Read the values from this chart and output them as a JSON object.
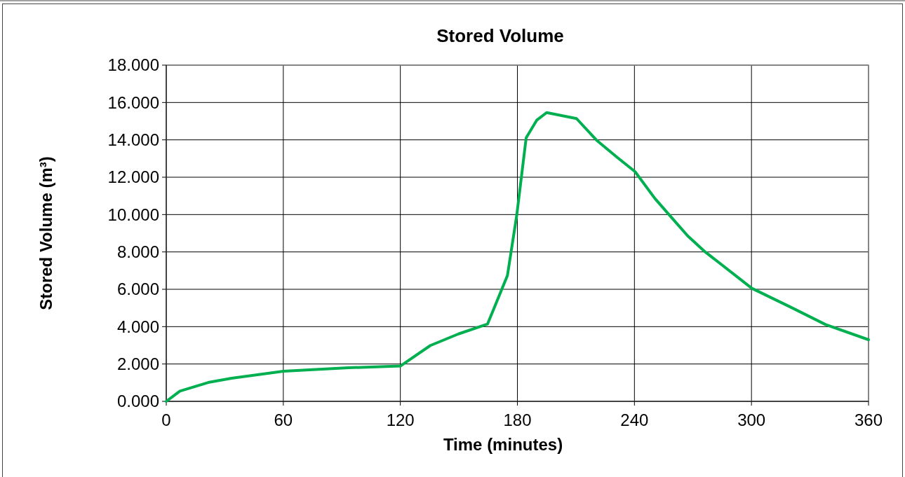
{
  "chart_data": {
    "type": "line",
    "title": "Stored Volume",
    "xlabel": "Time (minutes)",
    "ylabel": "Stored Volume (m³)",
    "x": [
      0,
      7,
      21.5,
      33.5,
      60,
      93.4,
      120,
      135.4,
      149.8,
      164.7,
      168.3,
      174.9,
      179.7,
      184.5,
      189.9,
      195,
      210.3,
      220.5,
      231.3,
      240.3,
      250.5,
      258.9,
      267.3,
      275.7,
      300.2,
      320,
      338,
      360
    ],
    "series": [
      {
        "color": "#00b050",
        "values": [
          0,
          0.55,
          1.01,
          1.24,
          1.61,
          1.8,
          1.89,
          2.99,
          3.61,
          4.14,
          5.05,
          6.74,
          9.99,
          14.11,
          15.05,
          15.46,
          15.14,
          13.99,
          13.05,
          12.3,
          10.86,
          9.86,
          8.86,
          8.05,
          6.05,
          5.05,
          4.11,
          3.3
        ]
      }
    ],
    "xlim": [
      0,
      360
    ],
    "xticks": [
      0,
      60,
      120,
      180,
      240,
      300,
      360
    ],
    "ylim": [
      0,
      18
    ],
    "yticks": [
      {
        "value": 0,
        "label": "0.000"
      },
      {
        "value": 2,
        "label": "2.000"
      },
      {
        "value": 4,
        "label": "4.000"
      },
      {
        "value": 6,
        "label": "6.000"
      },
      {
        "value": 8,
        "label": "8.000"
      },
      {
        "value": 10,
        "label": "10.000"
      },
      {
        "value": 12,
        "label": "12.000"
      },
      {
        "value": 14,
        "label": "14.000"
      },
      {
        "value": 16,
        "label": "16.000"
      },
      {
        "value": 18,
        "label": "18.000"
      }
    ],
    "grid": true,
    "marker": "none",
    "line_style": "solid"
  }
}
